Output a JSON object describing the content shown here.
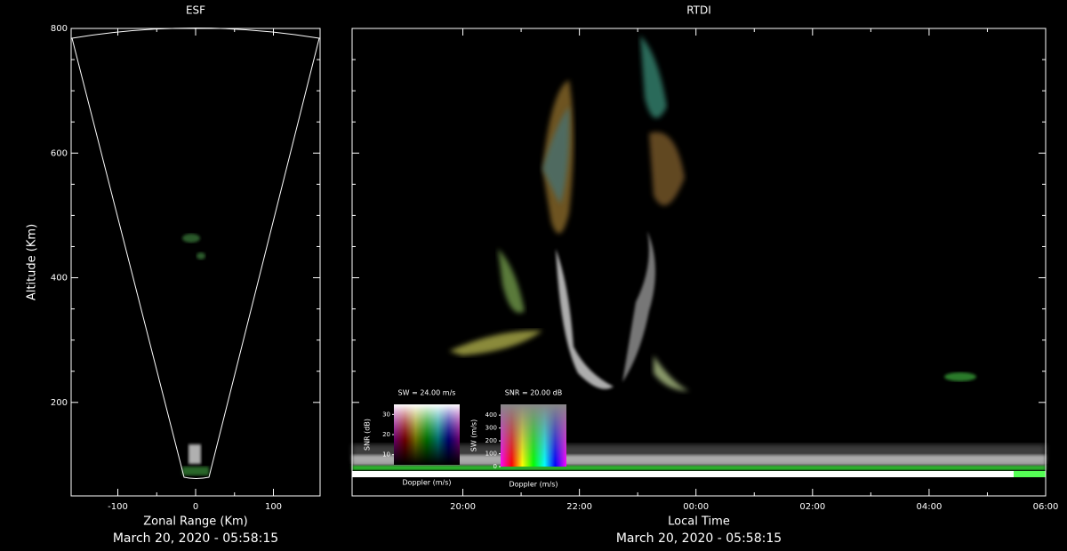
{
  "chart_data": [
    {
      "type": "fan",
      "title": "ESF",
      "xlabel": "Zonal Range (Km)",
      "ylabel": "Altitude (Km)",
      "subtitle": "March 20, 2020 - 05:58:15",
      "xlim": [
        -160,
        160
      ],
      "xticks": [
        -100,
        0,
        100
      ],
      "ylim": [
        50,
        800
      ],
      "yticks": [
        200,
        400,
        600,
        800
      ]
    },
    {
      "type": "rtdi",
      "title": "RTDI",
      "xlabel": "Local Time",
      "subtitle": "March 20, 2020 - 05:58:15",
      "xlim": [
        18.1,
        30
      ],
      "xticks": [
        {
          "value": 20,
          "label": "20:00"
        },
        {
          "value": 22,
          "label": "22:00"
        },
        {
          "value": 24,
          "label": "00:00"
        },
        {
          "value": 26,
          "label": "02:00"
        },
        {
          "value": 28,
          "label": "04:00"
        },
        {
          "value": 30,
          "label": "06:00"
        }
      ],
      "ylim": [
        50,
        800
      ],
      "yticks": [
        200,
        400,
        600,
        800
      ],
      "keys": [
        {
          "title": "SW = 24.00 m/s",
          "ylabel": "SNR (dB)",
          "xlabel": "Doppler (m/s)",
          "ylim": [
            5,
            35
          ],
          "yticks": [
            10,
            20,
            30
          ]
        },
        {
          "title": "SNR = 20.00 dB",
          "ylabel": "SW (m/s)",
          "xlabel": "Doppler (m/s)",
          "ylim": [
            0,
            484
          ],
          "yticks": [
            0,
            100,
            200,
            300,
            400
          ]
        }
      ]
    }
  ]
}
